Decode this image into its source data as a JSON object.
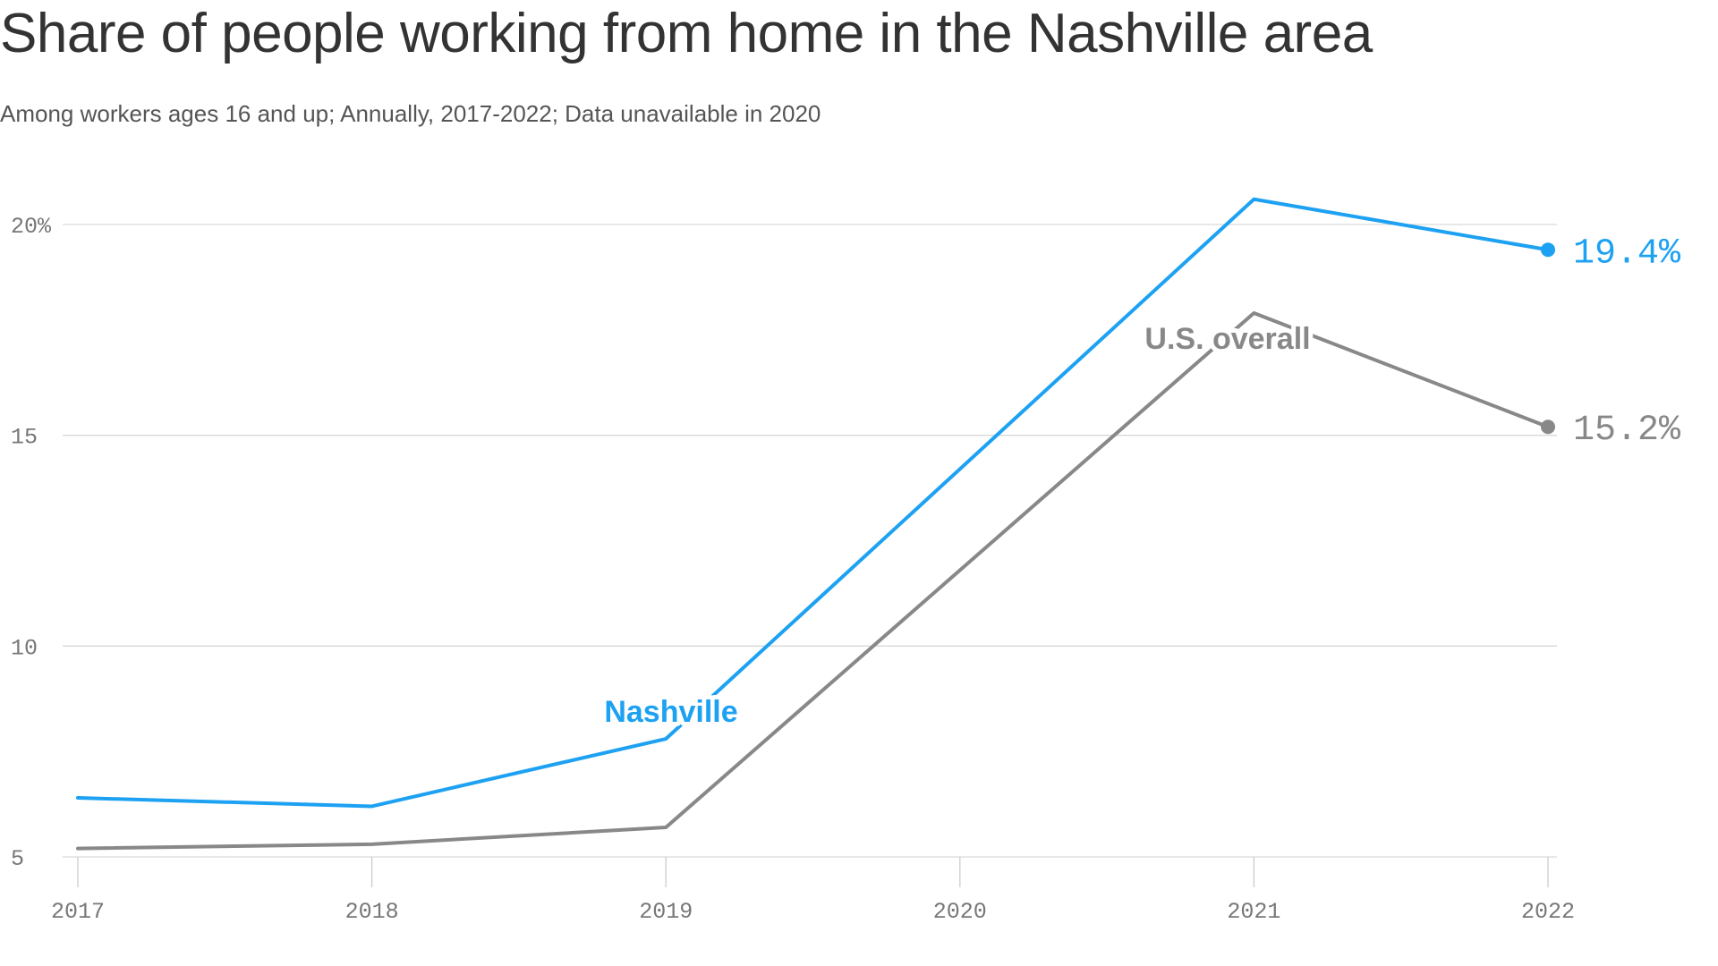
{
  "title": "Share of people working from home in the Nashville area",
  "subtitle": "Among workers ages 16 and up; Annually, 2017-2022; Data unavailable in 2020",
  "colors": {
    "nashville": "#1da1f2",
    "us": "#888888",
    "grid": "#d9d9d9",
    "tick": "#777777"
  },
  "chart_data": {
    "type": "line",
    "title": "Share of people working from home in the Nashville area",
    "subtitle": "Among workers ages 16 and up; Annually, 2017-2022; Data unavailable in 2020",
    "x": [
      "2017",
      "2018",
      "2019",
      "2020",
      "2021",
      "2022"
    ],
    "x_tick_labels": [
      "2017",
      "2018",
      "2019",
      "2020",
      "2021",
      "2022"
    ],
    "y_ticks": [
      5,
      10,
      15,
      20
    ],
    "y_tick_labels": [
      "5",
      "10",
      "15",
      "20%"
    ],
    "ylim": [
      5,
      20
    ],
    "grid": true,
    "series": [
      {
        "name": "Nashville",
        "color": "#1da1f2",
        "x": [
          "2017",
          "2018",
          "2019",
          "2021",
          "2022"
        ],
        "values": [
          6.4,
          6.2,
          7.8,
          20.6,
          19.4
        ],
        "end_label": "19.4%"
      },
      {
        "name": "U.S. overall",
        "color": "#888888",
        "x": [
          "2017",
          "2018",
          "2019",
          "2021",
          "2022"
        ],
        "values": [
          5.2,
          5.3,
          5.7,
          17.9,
          15.2
        ],
        "end_label": "15.2%"
      }
    ]
  }
}
